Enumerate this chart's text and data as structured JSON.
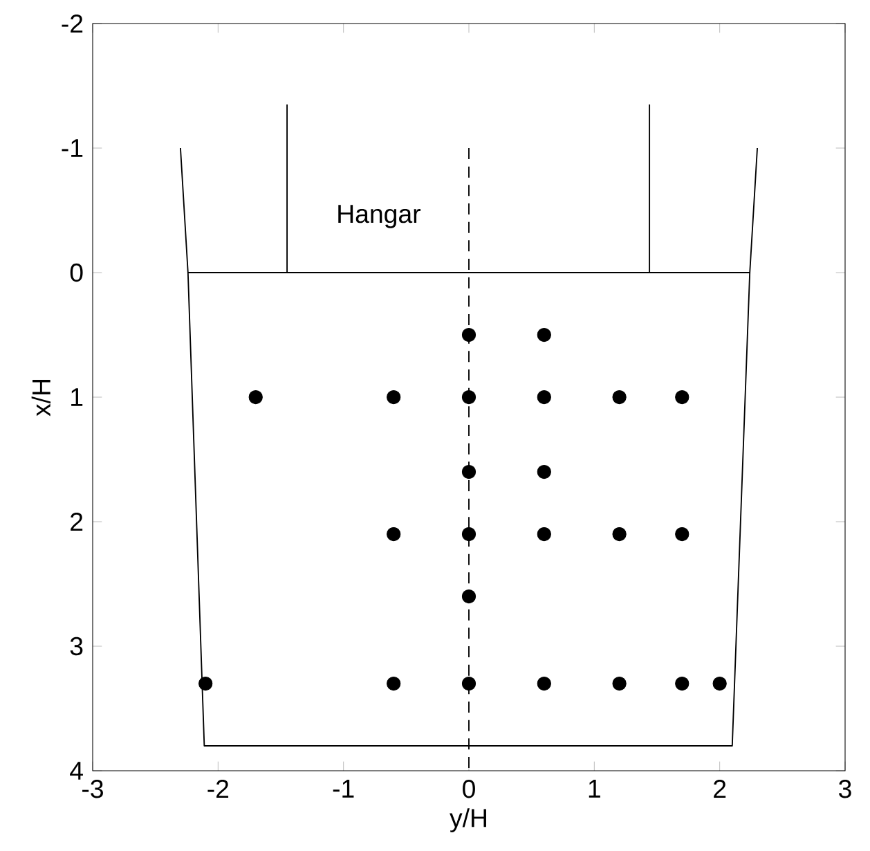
{
  "chart_data": {
    "type": "scatter",
    "xlabel": "y/H",
    "ylabel": "x/H",
    "annotations": [
      "Hangar"
    ],
    "marker": "circle",
    "xlim": [
      -3,
      3
    ],
    "ylim": [
      4,
      -2
    ],
    "xticks": [
      -3,
      -2,
      -1,
      0,
      1,
      2,
      3
    ],
    "yticks": [
      -2,
      -1,
      0,
      1,
      2,
      3,
      4
    ],
    "series": [
      {
        "color": "#000000",
        "x": [
          0,
          0.6,
          -1.7,
          -0.6,
          0,
          0.6,
          1.2,
          1.7,
          0,
          0.6,
          -0.6,
          0,
          0.6,
          1.2,
          1.7,
          0,
          -2.1,
          -0.6,
          0,
          0.6,
          1.2,
          1.7,
          2.0
        ],
        "values": [
          0.5,
          0.5,
          1,
          1,
          1,
          1,
          1,
          1,
          1.6,
          1.6,
          2.1,
          2.1,
          2.1,
          2.1,
          2.1,
          2.6,
          3.3,
          3.3,
          3.3,
          3.3,
          3.3,
          3.3,
          3.3
        ]
      },
      {
        "type": "line",
        "color": "#000000",
        "marker": "none",
        "line_style": "solid",
        "x": [
          -2.3,
          -2.24,
          -2.11,
          2.1,
          2.24,
          2.3
        ],
        "values": [
          -1,
          0,
          3.8,
          3.8,
          0,
          -1
        ]
      },
      {
        "type": "line",
        "color": "#000000",
        "marker": "none",
        "line_style": "solid",
        "x": [
          -2.24,
          2.24
        ],
        "values": [
          0,
          0
        ]
      },
      {
        "type": "line",
        "color": "#000000",
        "marker": "none",
        "line_style": "solid",
        "x": [
          -1.45,
          -1.45
        ],
        "values": [
          0,
          -1.35
        ]
      },
      {
        "type": "line",
        "color": "#000000",
        "marker": "none",
        "line_style": "solid",
        "x": [
          1.44,
          1.44
        ],
        "values": [
          0,
          -1.35
        ]
      },
      {
        "type": "line",
        "color": "#000000",
        "marker": "none",
        "line_style": "dashed",
        "x": [
          0,
          0
        ],
        "values": [
          -1,
          4
        ]
      }
    ]
  }
}
